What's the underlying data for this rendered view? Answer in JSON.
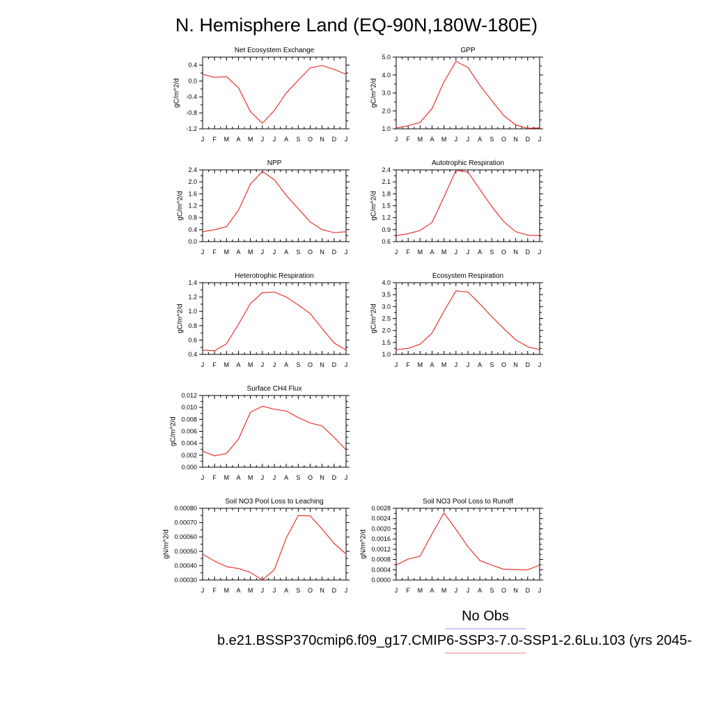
{
  "figure": {
    "title": "N. Hemisphere Land (EQ-90N,180W-180E)",
    "legend": [
      {
        "label": "No Obs",
        "color": "#8f9bf0"
      },
      {
        "label": "b.e21.BSSP370cmip6.f09_g17.CMIP6-SSP3-7.0-SSP1-2.6Lu.103 (yrs 2045-",
        "color": "#f07c7c"
      }
    ],
    "series_color": "#e8221b"
  },
  "chart_data": [
    {
      "type": "line",
      "title": "Net Ecosystem Exchange",
      "ylabel": "gC/m^2/d",
      "x": [
        "J",
        "F",
        "M",
        "A",
        "M",
        "J",
        "J",
        "A",
        "S",
        "O",
        "N",
        "D",
        "J"
      ],
      "ylim": [
        -1.2,
        0.6
      ],
      "yticks": [
        -1.2,
        -0.8,
        -0.4,
        0.0,
        0.4
      ],
      "ytick_labels": [
        "-1.2",
        "-0.8",
        "-0.4",
        "0.0",
        "0.4"
      ],
      "series": [
        {
          "values": [
            0.17,
            0.09,
            0.11,
            -0.17,
            -0.77,
            -1.06,
            -0.74,
            -0.3,
            0.02,
            0.33,
            0.39,
            0.29,
            0.17
          ]
        }
      ]
    },
    {
      "type": "line",
      "title": "GPP",
      "ylabel": "gC/m^2/d",
      "x": [
        "J",
        "F",
        "M",
        "A",
        "M",
        "J",
        "J",
        "A",
        "S",
        "O",
        "N",
        "D",
        "J"
      ],
      "ylim": [
        1.0,
        5.0
      ],
      "yticks": [
        1.0,
        2.0,
        3.0,
        4.0,
        5.0
      ],
      "ytick_labels": [
        "1.0",
        "2.0",
        "3.0",
        "4.0",
        "5.0"
      ],
      "series": [
        {
          "values": [
            1.05,
            1.17,
            1.36,
            2.13,
            3.62,
            4.76,
            4.42,
            3.43,
            2.57,
            1.74,
            1.22,
            1.03,
            1.05
          ]
        }
      ]
    },
    {
      "type": "line",
      "title": "NPP",
      "ylabel": "gC/m^2/d",
      "x": [
        "J",
        "F",
        "M",
        "A",
        "M",
        "J",
        "J",
        "A",
        "S",
        "O",
        "N",
        "D",
        "J"
      ],
      "ylim": [
        0.0,
        2.4
      ],
      "yticks": [
        0.0,
        0.4,
        0.8,
        1.2,
        1.6,
        2.0,
        2.4
      ],
      "ytick_labels": [
        "0.0",
        "0.4",
        "0.8",
        "1.2",
        "1.6",
        "2.0",
        "2.4"
      ],
      "series": [
        {
          "values": [
            0.33,
            0.4,
            0.5,
            1.05,
            1.92,
            2.35,
            2.07,
            1.55,
            1.1,
            0.66,
            0.4,
            0.3,
            0.33
          ]
        }
      ]
    },
    {
      "type": "line",
      "title": "Autotrophic Respiration",
      "ylabel": "gC/m^2/d",
      "x": [
        "J",
        "F",
        "M",
        "A",
        "M",
        "J",
        "J",
        "A",
        "S",
        "O",
        "N",
        "D",
        "J"
      ],
      "ylim": [
        0.6,
        2.4
      ],
      "yticks": [
        0.6,
        0.9,
        1.2,
        1.5,
        1.8,
        2.1,
        2.4
      ],
      "ytick_labels": [
        "0.6",
        "0.9",
        "1.2",
        "1.5",
        "1.8",
        "2.1",
        "2.4"
      ],
      "series": [
        {
          "values": [
            0.75,
            0.8,
            0.88,
            1.08,
            1.72,
            2.39,
            2.35,
            1.91,
            1.48,
            1.1,
            0.85,
            0.76,
            0.75
          ]
        }
      ]
    },
    {
      "type": "line",
      "title": "Heterotrophic Respiration",
      "ylabel": "gC/m^2/d",
      "x": [
        "J",
        "F",
        "M",
        "A",
        "M",
        "J",
        "J",
        "A",
        "S",
        "O",
        "N",
        "D",
        "J"
      ],
      "ylim": [
        0.4,
        1.4
      ],
      "yticks": [
        0.4,
        0.6,
        0.8,
        1.0,
        1.2,
        1.4
      ],
      "ytick_labels": [
        "0.4",
        "0.6",
        "0.8",
        "1.0",
        "1.2",
        "1.4"
      ],
      "series": [
        {
          "values": [
            0.46,
            0.45,
            0.55,
            0.82,
            1.11,
            1.26,
            1.27,
            1.2,
            1.09,
            0.97,
            0.76,
            0.56,
            0.46
          ]
        }
      ]
    },
    {
      "type": "line",
      "title": "Ecosystem Respiration",
      "ylabel": "gC/m^2/d",
      "x": [
        "J",
        "F",
        "M",
        "A",
        "M",
        "J",
        "J",
        "A",
        "S",
        "O",
        "N",
        "D",
        "J"
      ],
      "ylim": [
        1.0,
        4.0
      ],
      "yticks": [
        1.0,
        1.5,
        2.0,
        2.5,
        3.0,
        3.5,
        4.0
      ],
      "ytick_labels": [
        "1.0",
        "1.5",
        "2.0",
        "2.5",
        "3.0",
        "3.5",
        "4.0"
      ],
      "series": [
        {
          "values": [
            1.2,
            1.25,
            1.43,
            1.89,
            2.81,
            3.66,
            3.61,
            3.11,
            2.58,
            2.08,
            1.61,
            1.32,
            1.2
          ]
        }
      ]
    },
    {
      "type": "line",
      "title": "Surface CH4 Flux",
      "ylabel": "gC/m^2/d",
      "x": [
        "J",
        "F",
        "M",
        "A",
        "M",
        "J",
        "J",
        "A",
        "S",
        "O",
        "N",
        "D",
        "J"
      ],
      "ylim": [
        0.0,
        0.012
      ],
      "yticks": [
        0.0,
        0.002,
        0.004,
        0.006,
        0.008,
        0.01,
        0.012
      ],
      "ytick_labels": [
        "0.000",
        "0.002",
        "0.004",
        "0.006",
        "0.008",
        "0.010",
        "0.012"
      ],
      "series": [
        {
          "values": [
            0.0027,
            0.0019,
            0.0023,
            0.0047,
            0.0092,
            0.0102,
            0.0097,
            0.0094,
            0.0083,
            0.0074,
            0.0069,
            0.005,
            0.0029
          ]
        }
      ]
    },
    null,
    {
      "type": "line",
      "title": "Soil NO3 Pool Loss to Leaching",
      "ylabel": "gN/m^2/d",
      "x": [
        "J",
        "F",
        "M",
        "A",
        "M",
        "J",
        "J",
        "A",
        "S",
        "O",
        "N",
        "D",
        "J"
      ],
      "ylim": [
        0.0003,
        0.0008
      ],
      "yticks": [
        0.0003,
        0.0004,
        0.0005,
        0.0006,
        0.0007,
        0.0008
      ],
      "ytick_labels": [
        "0.00030",
        "0.00040",
        "0.00050",
        "0.00060",
        "0.00070",
        "0.00080"
      ],
      "series": [
        {
          "values": [
            0.000481,
            0.000432,
            0.000393,
            0.00038,
            0.000353,
            0.0003,
            0.000372,
            0.000593,
            0.00075,
            0.000747,
            0.000655,
            0.000555,
            0.000481
          ]
        }
      ]
    },
    {
      "type": "line",
      "title": "Soil NO3 Pool Loss to Runoff",
      "ylabel": "gN/m^2/d",
      "x": [
        "J",
        "F",
        "M",
        "A",
        "M",
        "J",
        "J",
        "A",
        "S",
        "O",
        "N",
        "D",
        "J"
      ],
      "ylim": [
        0.0,
        0.0028
      ],
      "yticks": [
        0.0,
        0.0004,
        0.0008,
        0.0012,
        0.0016,
        0.002,
        0.0024,
        0.0028
      ],
      "ytick_labels": [
        "0.0000",
        "0.0004",
        "0.0008",
        "0.0012",
        "0.0016",
        "0.0020",
        "0.0024",
        "0.0028"
      ],
      "series": [
        {
          "values": [
            0.00058,
            0.00082,
            0.00093,
            0.0018,
            0.00262,
            0.00198,
            0.0013,
            0.00076,
            0.00058,
            0.00042,
            0.00041,
            0.0004,
            0.00058
          ]
        }
      ]
    }
  ]
}
